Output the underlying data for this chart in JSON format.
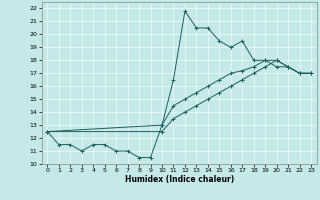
{
  "xlabel": "Humidex (Indice chaleur)",
  "bg_color": "#c5e8e8",
  "line_color": "#1a6060",
  "xlim": [
    -0.5,
    23.5
  ],
  "ylim": [
    10,
    22.5
  ],
  "yticks": [
    10,
    11,
    12,
    13,
    14,
    15,
    16,
    17,
    18,
    19,
    20,
    21,
    22
  ],
  "xticks": [
    0,
    1,
    2,
    3,
    4,
    5,
    6,
    7,
    8,
    9,
    10,
    11,
    12,
    13,
    14,
    15,
    16,
    17,
    18,
    19,
    20,
    21,
    22,
    23
  ],
  "series1_x": [
    0,
    1,
    2,
    3,
    4,
    5,
    6,
    7,
    8,
    9,
    10,
    11,
    12,
    13,
    14,
    15,
    16,
    17,
    18,
    19,
    20,
    21,
    22,
    23
  ],
  "series1_y": [
    12.5,
    11.5,
    11.5,
    11.0,
    11.5,
    11.5,
    11.0,
    11.0,
    10.5,
    10.5,
    13.0,
    16.5,
    21.8,
    20.5,
    20.5,
    19.5,
    19.0,
    19.5,
    18.0,
    18.0,
    17.5,
    17.5,
    17.0,
    17.0
  ],
  "series2_x": [
    0,
    10,
    11,
    12,
    13,
    14,
    15,
    16,
    17,
    18,
    19,
    20,
    21,
    22,
    23
  ],
  "series2_y": [
    12.5,
    13.0,
    14.5,
    15.0,
    15.5,
    16.0,
    16.5,
    17.0,
    17.2,
    17.5,
    18.0,
    18.0,
    17.5,
    17.0,
    17.0
  ],
  "series3_x": [
    0,
    10,
    11,
    12,
    13,
    14,
    15,
    16,
    17,
    18,
    19,
    20,
    21,
    22,
    23
  ],
  "series3_y": [
    12.5,
    12.5,
    13.5,
    14.0,
    14.5,
    15.0,
    15.5,
    16.0,
    16.5,
    17.0,
    17.5,
    18.0,
    17.5,
    17.0,
    17.0
  ]
}
